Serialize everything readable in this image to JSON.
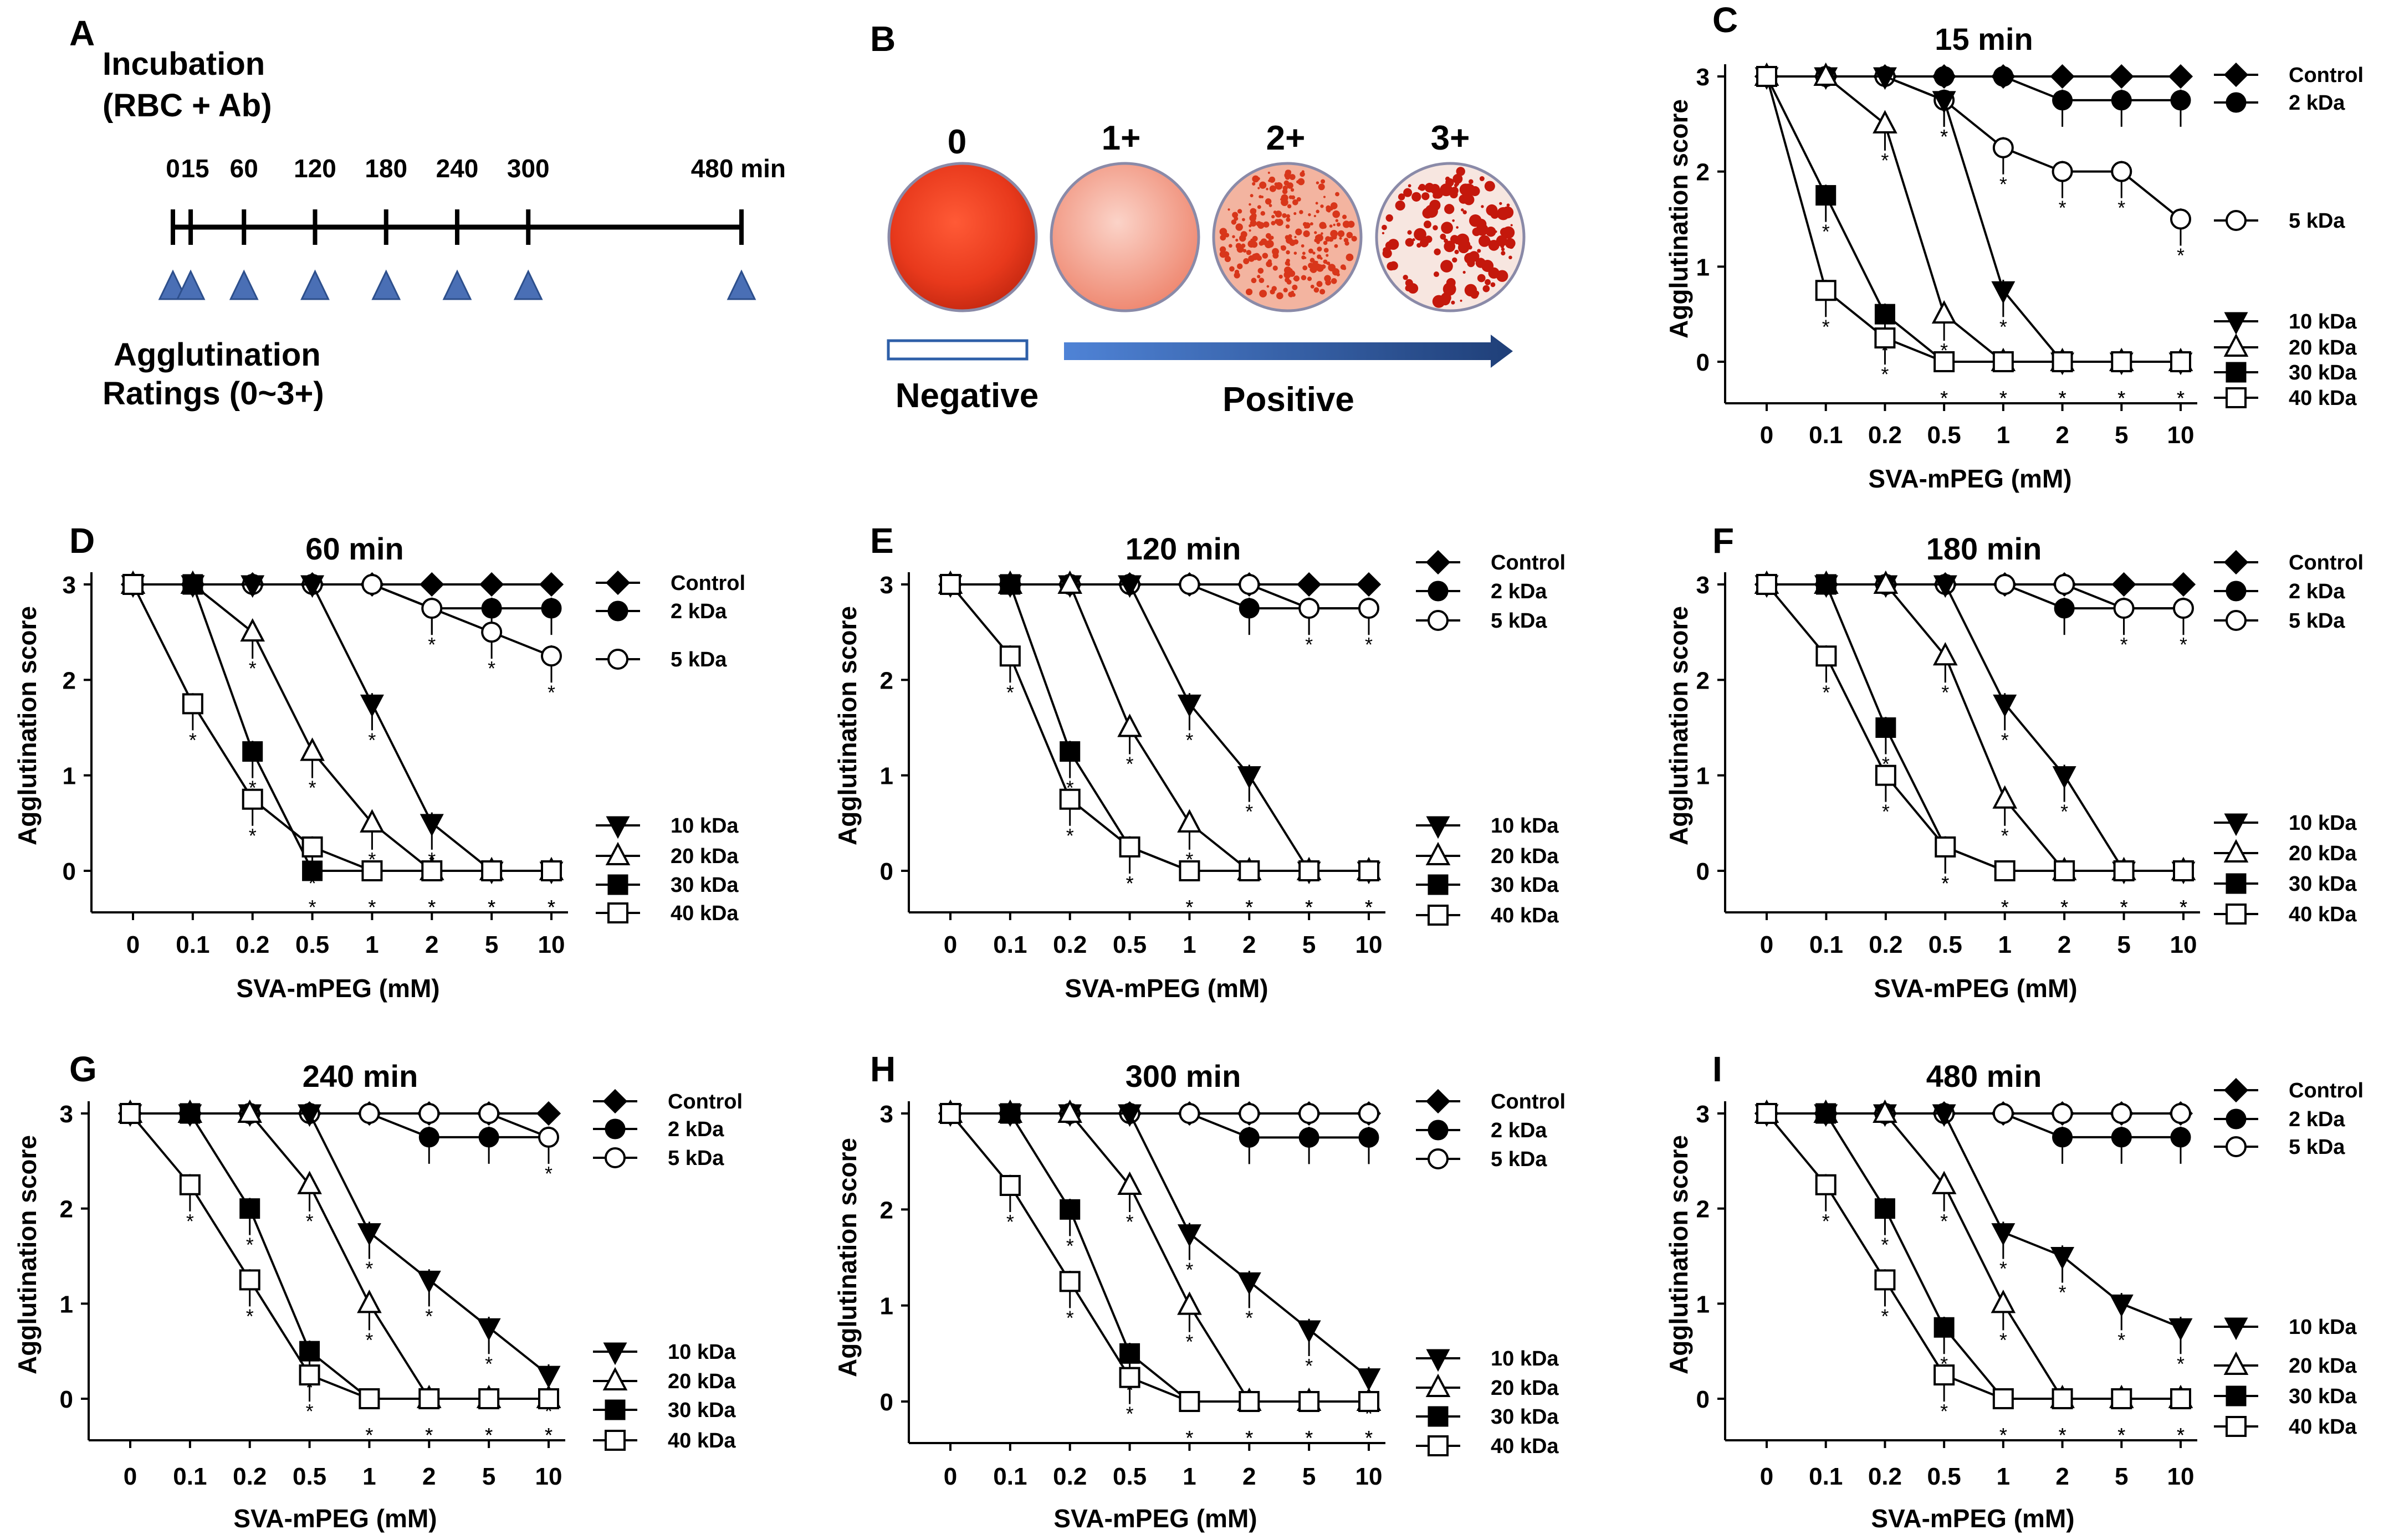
{
  "panel_a": {
    "letter": "A",
    "title_line1": "Incubation",
    "title_line2": "(RBC + Ab)",
    "time_labels": [
      "0",
      "15",
      "60",
      "120",
      "180",
      "240",
      "300",
      "480 min"
    ],
    "time_values": [
      0,
      15,
      60,
      120,
      180,
      240,
      300,
      480
    ],
    "footer_line1": "Agglutination",
    "footer_line2": "Ratings (0~3+)",
    "marker_color": "#4a6fb5"
  },
  "panel_b": {
    "letter": "B",
    "grades": [
      "0",
      "1+",
      "2+",
      "3+"
    ],
    "negative_label": "Negative",
    "positive_label": "Positive",
    "arrow_color": "#2e5fa8"
  },
  "chart_data": [
    {
      "type": "line",
      "panel": "C",
      "title": "15 min",
      "xlabel": "SVA-mPEG (mM)",
      "ylabel": "Agglutination score",
      "categories": [
        "0",
        "0.1",
        "0.2",
        "0.5",
        "1",
        "2",
        "5",
        "10"
      ],
      "ylim": [
        0,
        3
      ],
      "yticks": [
        "0",
        "1",
        "2",
        "3"
      ],
      "series": [
        {
          "name": "Control",
          "marker": "diamond",
          "values": [
            3,
            3,
            3,
            3,
            3,
            3,
            3,
            3
          ]
        },
        {
          "name": "2 kDa",
          "marker": "circle-filled",
          "values": [
            3,
            3,
            3,
            3,
            3,
            2.75,
            2.75,
            2.75
          ]
        },
        {
          "name": "5 kDa",
          "marker": "circle-open",
          "values": [
            3,
            3,
            3,
            2.75,
            2.25,
            2,
            2,
            1.5
          ]
        },
        {
          "name": "10 kDa",
          "marker": "triangle-down",
          "values": [
            3,
            3,
            3,
            2.75,
            0.75,
            0,
            0,
            0
          ]
        },
        {
          "name": "20 kDa",
          "marker": "triangle-up-open",
          "values": [
            3,
            3,
            2.5,
            0.5,
            0,
            0,
            0,
            0
          ]
        },
        {
          "name": "30 kDa",
          "marker": "square-filled",
          "values": [
            3,
            1.75,
            0.5,
            0,
            0,
            0,
            0,
            0
          ]
        },
        {
          "name": "40 kDa",
          "marker": "square-open",
          "values": [
            3,
            0.75,
            0.25,
            0,
            0,
            0,
            0,
            0
          ]
        }
      ]
    },
    {
      "type": "line",
      "panel": "D",
      "title": "60 min",
      "xlabel": "SVA-mPEG (mM)",
      "ylabel": "Agglutination score",
      "categories": [
        "0",
        "0.1",
        "0.2",
        "0.5",
        "1",
        "2",
        "5",
        "10"
      ],
      "ylim": [
        0,
        3
      ],
      "yticks": [
        "0",
        "1",
        "2",
        "3"
      ],
      "series": [
        {
          "name": "Control",
          "marker": "diamond",
          "values": [
            3,
            3,
            3,
            3,
            3,
            3,
            3,
            3
          ]
        },
        {
          "name": "2 kDa",
          "marker": "circle-filled",
          "values": [
            3,
            3,
            3,
            3,
            3,
            2.75,
            2.75,
            2.75
          ]
        },
        {
          "name": "5 kDa",
          "marker": "circle-open",
          "values": [
            3,
            3,
            3,
            3,
            3,
            2.75,
            2.5,
            2.25
          ]
        },
        {
          "name": "10 kDa",
          "marker": "triangle-down",
          "values": [
            3,
            3,
            3,
            3,
            1.75,
            0.5,
            0,
            0
          ]
        },
        {
          "name": "20 kDa",
          "marker": "triangle-up-open",
          "values": [
            3,
            3,
            2.5,
            1.25,
            0.5,
            0,
            0,
            0
          ]
        },
        {
          "name": "30 kDa",
          "marker": "square-filled",
          "values": [
            3,
            3,
            1.25,
            0,
            0,
            0,
            0,
            0
          ]
        },
        {
          "name": "40 kDa",
          "marker": "square-open",
          "values": [
            3,
            1.75,
            0.75,
            0.25,
            0,
            0,
            0,
            0
          ]
        }
      ]
    },
    {
      "type": "line",
      "panel": "E",
      "title": "120 min",
      "xlabel": "SVA-mPEG (mM)",
      "ylabel": "Agglutination score",
      "categories": [
        "0",
        "0.1",
        "0.2",
        "0.5",
        "1",
        "2",
        "5",
        "10"
      ],
      "ylim": [
        0,
        3
      ],
      "yticks": [
        "0",
        "1",
        "2",
        "3"
      ],
      "series": [
        {
          "name": "Control",
          "marker": "diamond",
          "values": [
            3,
            3,
            3,
            3,
            3,
            3,
            3,
            3
          ]
        },
        {
          "name": "2 kDa",
          "marker": "circle-filled",
          "values": [
            3,
            3,
            3,
            3,
            3,
            2.75,
            2.75,
            2.75
          ]
        },
        {
          "name": "5 kDa",
          "marker": "circle-open",
          "values": [
            3,
            3,
            3,
            3,
            3,
            3,
            2.75,
            2.75
          ]
        },
        {
          "name": "10 kDa",
          "marker": "triangle-down",
          "values": [
            3,
            3,
            3,
            3,
            1.75,
            1,
            0,
            0
          ]
        },
        {
          "name": "20 kDa",
          "marker": "triangle-up-open",
          "values": [
            3,
            3,
            3,
            1.5,
            0.5,
            0,
            0,
            0
          ]
        },
        {
          "name": "30 kDa",
          "marker": "square-filled",
          "values": [
            3,
            3,
            1.25,
            0.25,
            0,
            0,
            0,
            0
          ]
        },
        {
          "name": "40 kDa",
          "marker": "square-open",
          "values": [
            3,
            2.25,
            0.75,
            0.25,
            0,
            0,
            0,
            0
          ]
        }
      ]
    },
    {
      "type": "line",
      "panel": "F",
      "title": "180 min",
      "xlabel": "SVA-mPEG (mM)",
      "ylabel": "Agglutination score",
      "categories": [
        "0",
        "0.1",
        "0.2",
        "0.5",
        "1",
        "2",
        "5",
        "10"
      ],
      "ylim": [
        0,
        3
      ],
      "yticks": [
        "0",
        "1",
        "2",
        "3"
      ],
      "series": [
        {
          "name": "Control",
          "marker": "diamond",
          "values": [
            3,
            3,
            3,
            3,
            3,
            3,
            3,
            3
          ]
        },
        {
          "name": "2 kDa",
          "marker": "circle-filled",
          "values": [
            3,
            3,
            3,
            3,
            3,
            2.75,
            2.75,
            2.75
          ]
        },
        {
          "name": "5 kDa",
          "marker": "circle-open",
          "values": [
            3,
            3,
            3,
            3,
            3,
            3,
            2.75,
            2.75
          ]
        },
        {
          "name": "10 kDa",
          "marker": "triangle-down",
          "values": [
            3,
            3,
            3,
            3,
            1.75,
            1,
            0,
            0
          ]
        },
        {
          "name": "20 kDa",
          "marker": "triangle-up-open",
          "values": [
            3,
            3,
            3,
            2.25,
            0.75,
            0,
            0,
            0
          ]
        },
        {
          "name": "30 kDa",
          "marker": "square-filled",
          "values": [
            3,
            3,
            1.5,
            0.25,
            0,
            0,
            0,
            0
          ]
        },
        {
          "name": "40 kDa",
          "marker": "square-open",
          "values": [
            3,
            2.25,
            1,
            0.25,
            0,
            0,
            0,
            0
          ]
        }
      ]
    },
    {
      "type": "line",
      "panel": "G",
      "title": "240 min",
      "xlabel": "SVA-mPEG (mM)",
      "ylabel": "Agglutination score",
      "categories": [
        "0",
        "0.1",
        "0.2",
        "0.5",
        "1",
        "2",
        "5",
        "10"
      ],
      "ylim": [
        0,
        3
      ],
      "yticks": [
        "0",
        "1",
        "2",
        "3"
      ],
      "series": [
        {
          "name": "Control",
          "marker": "diamond",
          "values": [
            3,
            3,
            3,
            3,
            3,
            3,
            3,
            3
          ]
        },
        {
          "name": "2 kDa",
          "marker": "circle-filled",
          "values": [
            3,
            3,
            3,
            3,
            3,
            2.75,
            2.75,
            2.75
          ]
        },
        {
          "name": "5 kDa",
          "marker": "circle-open",
          "values": [
            3,
            3,
            3,
            3,
            3,
            3,
            3,
            2.75
          ]
        },
        {
          "name": "10 kDa",
          "marker": "triangle-down",
          "values": [
            3,
            3,
            3,
            3,
            1.75,
            1.25,
            0.75,
            0.25
          ]
        },
        {
          "name": "20 kDa",
          "marker": "triangle-up-open",
          "values": [
            3,
            3,
            3,
            2.25,
            1,
            0,
            0,
            0
          ]
        },
        {
          "name": "30 kDa",
          "marker": "square-filled",
          "values": [
            3,
            3,
            2,
            0.5,
            0,
            0,
            0,
            0
          ]
        },
        {
          "name": "40 kDa",
          "marker": "square-open",
          "values": [
            3,
            2.25,
            1.25,
            0.25,
            0,
            0,
            0,
            0
          ]
        }
      ]
    },
    {
      "type": "line",
      "panel": "H",
      "title": "300 min",
      "xlabel": "SVA-mPEG (mM)",
      "ylabel": "Agglutination score",
      "categories": [
        "0",
        "0.1",
        "0.2",
        "0.5",
        "1",
        "2",
        "5",
        "10"
      ],
      "ylim": [
        0,
        3
      ],
      "yticks": [
        "0",
        "1",
        "2",
        "3"
      ],
      "series": [
        {
          "name": "Control",
          "marker": "diamond",
          "values": [
            3,
            3,
            3,
            3,
            3,
            3,
            3,
            3
          ]
        },
        {
          "name": "2 kDa",
          "marker": "circle-filled",
          "values": [
            3,
            3,
            3,
            3,
            3,
            2.75,
            2.75,
            2.75
          ]
        },
        {
          "name": "5 kDa",
          "marker": "circle-open",
          "values": [
            3,
            3,
            3,
            3,
            3,
            3,
            3,
            3
          ]
        },
        {
          "name": "10 kDa",
          "marker": "triangle-down",
          "values": [
            3,
            3,
            3,
            3,
            1.75,
            1.25,
            0.75,
            0.25
          ]
        },
        {
          "name": "20 kDa",
          "marker": "triangle-up-open",
          "values": [
            3,
            3,
            3,
            2.25,
            1,
            0,
            0,
            0
          ]
        },
        {
          "name": "30 kDa",
          "marker": "square-filled",
          "values": [
            3,
            3,
            2,
            0.5,
            0,
            0,
            0,
            0
          ]
        },
        {
          "name": "40 kDa",
          "marker": "square-open",
          "values": [
            3,
            2.25,
            1.25,
            0.25,
            0,
            0,
            0,
            0
          ]
        }
      ]
    },
    {
      "type": "line",
      "panel": "I",
      "title": "480 min",
      "xlabel": "SVA-mPEG (mM)",
      "ylabel": "Agglutination score",
      "categories": [
        "0",
        "0.1",
        "0.2",
        "0.5",
        "1",
        "2",
        "5",
        "10"
      ],
      "ylim": [
        0,
        3
      ],
      "yticks": [
        "0",
        "1",
        "2",
        "3"
      ],
      "series": [
        {
          "name": "Control",
          "marker": "diamond",
          "values": [
            3,
            3,
            3,
            3,
            3,
            3,
            3,
            3
          ]
        },
        {
          "name": "2 kDa",
          "marker": "circle-filled",
          "values": [
            3,
            3,
            3,
            3,
            3,
            2.75,
            2.75,
            2.75
          ]
        },
        {
          "name": "5 kDa",
          "marker": "circle-open",
          "values": [
            3,
            3,
            3,
            3,
            3,
            3,
            3,
            3
          ]
        },
        {
          "name": "10 kDa",
          "marker": "triangle-down",
          "values": [
            3,
            3,
            3,
            3,
            1.75,
            1.5,
            1,
            0.75
          ]
        },
        {
          "name": "20 kDa",
          "marker": "triangle-up-open",
          "values": [
            3,
            3,
            3,
            2.25,
            1,
            0,
            0,
            0
          ]
        },
        {
          "name": "30 kDa",
          "marker": "square-filled",
          "values": [
            3,
            3,
            2,
            0.75,
            0,
            0,
            0,
            0
          ]
        },
        {
          "name": "40 kDa",
          "marker": "square-open",
          "values": [
            3,
            2.25,
            1.25,
            0.25,
            0,
            0,
            0,
            0
          ]
        }
      ]
    }
  ]
}
